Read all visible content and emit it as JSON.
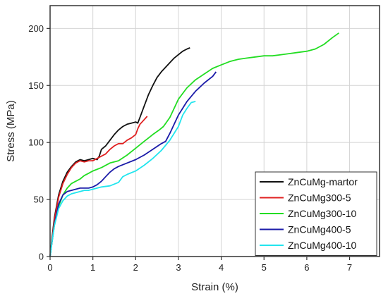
{
  "chart_data": {
    "type": "line",
    "title": "",
    "xlabel": "Strain (%)",
    "ylabel": "Stress (MPa)",
    "xlim": [
      0,
      7.7
    ],
    "ylim": [
      0,
      220
    ],
    "xticks": [
      0,
      1,
      2,
      3,
      4,
      5,
      6,
      7
    ],
    "yticks": [
      0,
      50,
      100,
      150,
      200
    ],
    "grid": true,
    "legend_position": "bottom-right",
    "series": [
      {
        "name": "ZnCuMg-martor",
        "color": "#111111",
        "points": [
          [
            0,
            0
          ],
          [
            0.05,
            18
          ],
          [
            0.1,
            34
          ],
          [
            0.2,
            54
          ],
          [
            0.3,
            66
          ],
          [
            0.4,
            74
          ],
          [
            0.5,
            79
          ],
          [
            0.6,
            83
          ],
          [
            0.7,
            85
          ],
          [
            0.8,
            84
          ],
          [
            0.9,
            85
          ],
          [
            1.0,
            86
          ],
          [
            1.1,
            85
          ],
          [
            1.15,
            88
          ],
          [
            1.2,
            94
          ],
          [
            1.3,
            97
          ],
          [
            1.4,
            102
          ],
          [
            1.5,
            107
          ],
          [
            1.6,
            111
          ],
          [
            1.7,
            114
          ],
          [
            1.8,
            116
          ],
          [
            1.9,
            117
          ],
          [
            2.0,
            118
          ],
          [
            2.05,
            117
          ],
          [
            2.1,
            122
          ],
          [
            2.2,
            132
          ],
          [
            2.3,
            142
          ],
          [
            2.4,
            150
          ],
          [
            2.5,
            157
          ],
          [
            2.6,
            162
          ],
          [
            2.7,
            166
          ],
          [
            2.8,
            170
          ],
          [
            2.9,
            174
          ],
          [
            3.0,
            177
          ],
          [
            3.1,
            180
          ],
          [
            3.2,
            182
          ],
          [
            3.27,
            183
          ]
        ]
      },
      {
        "name": "ZnCuMg300-5",
        "color": "#e02020",
        "points": [
          [
            0,
            0
          ],
          [
            0.05,
            16
          ],
          [
            0.1,
            32
          ],
          [
            0.2,
            52
          ],
          [
            0.3,
            64
          ],
          [
            0.4,
            72
          ],
          [
            0.5,
            78
          ],
          [
            0.6,
            82
          ],
          [
            0.7,
            84
          ],
          [
            0.8,
            83
          ],
          [
            0.9,
            84
          ],
          [
            1.0,
            84
          ],
          [
            1.1,
            86
          ],
          [
            1.2,
            88
          ],
          [
            1.3,
            90
          ],
          [
            1.4,
            94
          ],
          [
            1.5,
            97
          ],
          [
            1.6,
            99
          ],
          [
            1.7,
            99
          ],
          [
            1.8,
            102
          ],
          [
            1.9,
            104
          ],
          [
            2.0,
            107
          ],
          [
            2.05,
            112
          ],
          [
            2.1,
            116
          ],
          [
            2.2,
            120
          ],
          [
            2.27,
            123
          ]
        ]
      },
      {
        "name": "ZnCuMg300-10",
        "color": "#22dd22",
        "points": [
          [
            0,
            0
          ],
          [
            0.05,
            14
          ],
          [
            0.1,
            28
          ],
          [
            0.2,
            44
          ],
          [
            0.3,
            54
          ],
          [
            0.4,
            60
          ],
          [
            0.5,
            64
          ],
          [
            0.6,
            66
          ],
          [
            0.7,
            68
          ],
          [
            0.8,
            71
          ],
          [
            0.9,
            73
          ],
          [
            1.0,
            75
          ],
          [
            1.2,
            78
          ],
          [
            1.4,
            82
          ],
          [
            1.6,
            84
          ],
          [
            1.8,
            89
          ],
          [
            2.0,
            95
          ],
          [
            2.2,
            101
          ],
          [
            2.4,
            107
          ],
          [
            2.55,
            111
          ],
          [
            2.65,
            114
          ],
          [
            2.8,
            122
          ],
          [
            3.0,
            138
          ],
          [
            3.2,
            148
          ],
          [
            3.4,
            155
          ],
          [
            3.6,
            160
          ],
          [
            3.8,
            165
          ],
          [
            4.0,
            168
          ],
          [
            4.2,
            171
          ],
          [
            4.4,
            173
          ],
          [
            4.6,
            174
          ],
          [
            4.8,
            175
          ],
          [
            5.0,
            176
          ],
          [
            5.2,
            176
          ],
          [
            5.4,
            177
          ],
          [
            5.6,
            178
          ],
          [
            5.8,
            179
          ],
          [
            6.0,
            180
          ],
          [
            6.2,
            182
          ],
          [
            6.4,
            186
          ],
          [
            6.6,
            192
          ],
          [
            6.75,
            196
          ]
        ]
      },
      {
        "name": "ZnCuMg400-5",
        "color": "#1a1aa8",
        "points": [
          [
            0,
            0
          ],
          [
            0.05,
            14
          ],
          [
            0.1,
            28
          ],
          [
            0.2,
            46
          ],
          [
            0.3,
            54
          ],
          [
            0.4,
            57
          ],
          [
            0.5,
            58
          ],
          [
            0.6,
            59
          ],
          [
            0.7,
            60
          ],
          [
            0.8,
            60
          ],
          [
            0.9,
            60
          ],
          [
            1.0,
            61
          ],
          [
            1.1,
            63
          ],
          [
            1.2,
            66
          ],
          [
            1.3,
            70
          ],
          [
            1.4,
            74
          ],
          [
            1.5,
            77
          ],
          [
            1.6,
            79
          ],
          [
            1.8,
            82
          ],
          [
            2.0,
            85
          ],
          [
            2.2,
            89
          ],
          [
            2.4,
            94
          ],
          [
            2.6,
            99
          ],
          [
            2.7,
            101
          ],
          [
            2.8,
            108
          ],
          [
            3.0,
            124
          ],
          [
            3.2,
            136
          ],
          [
            3.4,
            145
          ],
          [
            3.6,
            152
          ],
          [
            3.8,
            158
          ],
          [
            3.88,
            162
          ]
        ]
      },
      {
        "name": "ZnCuMg400-10",
        "color": "#22e5ee",
        "points": [
          [
            0,
            0
          ],
          [
            0.05,
            14
          ],
          [
            0.1,
            27
          ],
          [
            0.2,
            42
          ],
          [
            0.3,
            49
          ],
          [
            0.4,
            53
          ],
          [
            0.5,
            55
          ],
          [
            0.6,
            56
          ],
          [
            0.7,
            57
          ],
          [
            0.8,
            58
          ],
          [
            0.9,
            58
          ],
          [
            1.0,
            59
          ],
          [
            1.2,
            61
          ],
          [
            1.4,
            62
          ],
          [
            1.6,
            65
          ],
          [
            1.7,
            70
          ],
          [
            1.8,
            72
          ],
          [
            2.0,
            75
          ],
          [
            2.2,
            80
          ],
          [
            2.4,
            86
          ],
          [
            2.6,
            93
          ],
          [
            2.8,
            102
          ],
          [
            3.0,
            114
          ],
          [
            3.1,
            124
          ],
          [
            3.2,
            130
          ],
          [
            3.3,
            135
          ],
          [
            3.4,
            136
          ]
        ]
      }
    ]
  }
}
